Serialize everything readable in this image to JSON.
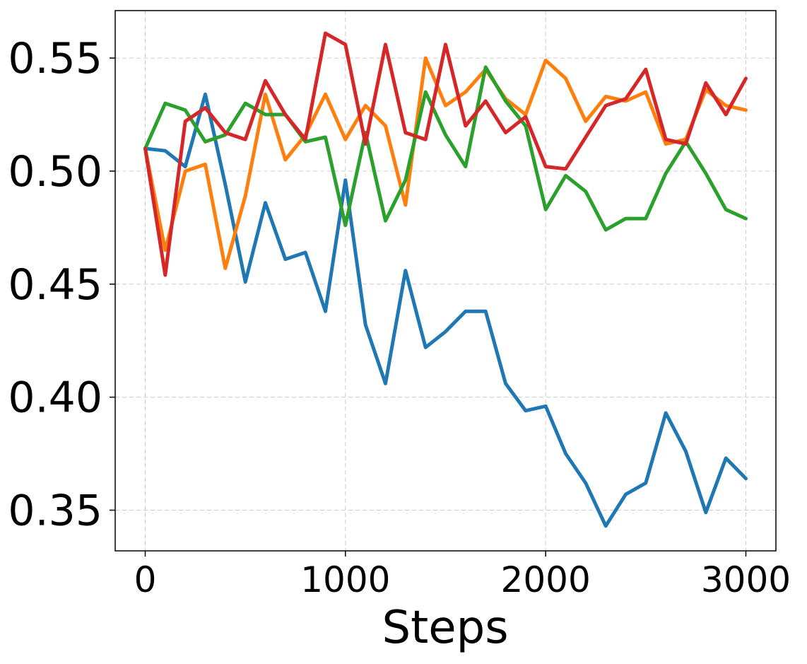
{
  "chart_data": {
    "type": "line",
    "title": "",
    "xlabel": "Steps",
    "ylabel": "",
    "xlim": [
      -150,
      3150
    ],
    "ylim": [
      0.332,
      0.571
    ],
    "x_ticks": [
      0,
      1000,
      2000,
      3000
    ],
    "y_ticks": [
      0.35,
      0.4,
      0.45,
      0.5,
      0.55
    ],
    "x_tick_labels": [
      "0",
      "1000",
      "2000",
      "3000"
    ],
    "y_tick_labels": [
      "0.35",
      "0.40",
      "0.45",
      "0.50",
      "0.55"
    ],
    "grid": true,
    "legend": "none",
    "x": [
      0,
      100,
      200,
      300,
      400,
      500,
      600,
      700,
      800,
      900,
      1000,
      1100,
      1200,
      1300,
      1400,
      1500,
      1600,
      1700,
      1800,
      1900,
      2000,
      2100,
      2200,
      2300,
      2400,
      2500,
      2600,
      2700,
      2800,
      2900,
      3000
    ],
    "series": [
      {
        "color": "#1f77b4",
        "values": [
          0.51,
          0.509,
          0.502,
          0.534,
          0.494,
          0.451,
          0.486,
          0.461,
          0.464,
          0.438,
          0.496,
          0.432,
          0.406,
          0.456,
          0.422,
          0.429,
          0.438,
          0.438,
          0.406,
          0.394,
          0.396,
          0.375,
          0.362,
          0.343,
          0.357,
          0.362,
          0.393,
          0.376,
          0.349,
          0.373,
          0.364
        ]
      },
      {
        "color": "#ff7f0e",
        "values": [
          0.51,
          0.465,
          0.5,
          0.503,
          0.457,
          0.489,
          0.534,
          0.505,
          0.516,
          0.534,
          0.514,
          0.529,
          0.52,
          0.485,
          0.55,
          0.529,
          0.535,
          0.545,
          0.532,
          0.525,
          0.549,
          0.541,
          0.522,
          0.533,
          0.531,
          0.535,
          0.512,
          0.514,
          0.536,
          0.529,
          0.527
        ]
      },
      {
        "color": "#2ca02c",
        "values": [
          0.51,
          0.53,
          0.527,
          0.513,
          0.516,
          0.53,
          0.525,
          0.525,
          0.513,
          0.515,
          0.476,
          0.517,
          0.478,
          0.496,
          0.535,
          0.516,
          0.502,
          0.546,
          0.531,
          0.52,
          0.483,
          0.498,
          0.491,
          0.474,
          0.479,
          0.479,
          0.499,
          0.513,
          0.499,
          0.483,
          0.479
        ]
      },
      {
        "color": "#d62728",
        "values": [
          0.51,
          0.454,
          0.522,
          0.528,
          0.517,
          0.514,
          0.54,
          0.525,
          0.514,
          0.561,
          0.556,
          0.512,
          0.556,
          0.517,
          0.514,
          0.556,
          0.52,
          0.531,
          0.517,
          0.524,
          0.502,
          0.501,
          0.515,
          0.529,
          0.532,
          0.545,
          0.514,
          0.512,
          0.539,
          0.525,
          0.541
        ]
      }
    ]
  }
}
